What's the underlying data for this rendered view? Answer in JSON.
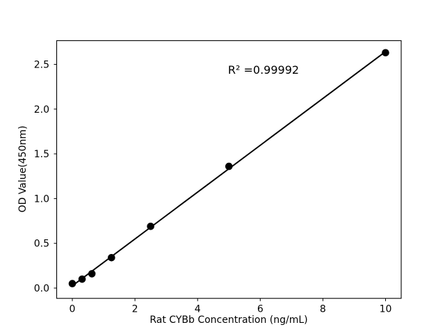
{
  "chart_data": {
    "type": "scatter",
    "title": "",
    "xlabel": "Rat CYBb Concentration (ng/mL)",
    "ylabel": "OD Value(450nm)",
    "points": [
      {
        "x": 0,
        "y": 0.05
      },
      {
        "x": 0.3125,
        "y": 0.1
      },
      {
        "x": 0.625,
        "y": 0.16
      },
      {
        "x": 1.25,
        "y": 0.34
      },
      {
        "x": 2.5,
        "y": 0.69
      },
      {
        "x": 5,
        "y": 1.36
      },
      {
        "x": 10,
        "y": 2.63
      }
    ],
    "trendline": {
      "type": "linear_fit",
      "x_start": 0,
      "x_end": 10
    },
    "annotation": {
      "text": "R² =0.99992",
      "r_squared": 0.99992,
      "x": 4.97,
      "y": 2.43
    },
    "x_ticks": [
      "0",
      "2",
      "4",
      "6",
      "8",
      "10"
    ],
    "x_tick_values": [
      0,
      2,
      4,
      6,
      8,
      10
    ],
    "y_ticks": [
      "0.0",
      "0.5",
      "1.0",
      "1.5",
      "2.0",
      "2.5"
    ],
    "y_tick_values": [
      0,
      0.5,
      1.0,
      1.5,
      2.0,
      2.5
    ],
    "xlim": [
      -0.5,
      10.5
    ],
    "ylim": [
      -0.115,
      2.765
    ],
    "grid": false,
    "legend": null,
    "marker_color": "#000000",
    "line_color": "#000000",
    "axis_color": "#000000",
    "text_color": "#000000",
    "background_color": "#ffffff"
  }
}
